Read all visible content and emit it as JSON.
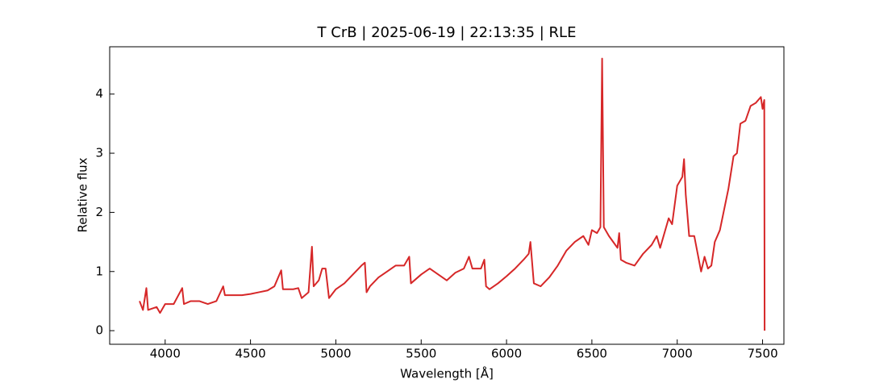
{
  "chart_data": {
    "type": "line",
    "title": "T CrB | 2025-06-19 | 22:13:35 | RLE",
    "xlabel": "Wavelength [Å]",
    "ylabel": "Relative flux",
    "xlim": [
      3675,
      7625
    ],
    "ylim": [
      -0.23,
      4.8
    ],
    "xticks": [
      4000,
      4500,
      5000,
      5500,
      6000,
      6500,
      7000,
      7500
    ],
    "yticks": [
      0,
      1,
      2,
      3,
      4
    ],
    "series": [
      {
        "color": "#d62728",
        "x": [
          3850,
          3870,
          3890,
          3900,
          3950,
          3970,
          4000,
          4050,
          4100,
          4110,
          4150,
          4200,
          4250,
          4300,
          4340,
          4350,
          4400,
          4450,
          4500,
          4550,
          4600,
          4640,
          4680,
          4690,
          4750,
          4780,
          4800,
          4840,
          4860,
          4870,
          4900,
          4920,
          4940,
          4960,
          5000,
          5050,
          5100,
          5150,
          5170,
          5180,
          5200,
          5250,
          5300,
          5350,
          5400,
          5430,
          5440,
          5500,
          5550,
          5600,
          5650,
          5700,
          5750,
          5780,
          5800,
          5850,
          5870,
          5880,
          5900,
          5950,
          6000,
          6050,
          6100,
          6130,
          6140,
          6160,
          6200,
          6250,
          6300,
          6350,
          6400,
          6450,
          6480,
          6500,
          6530,
          6550,
          6560,
          6570,
          6600,
          6650,
          6660,
          6670,
          6700,
          6750,
          6800,
          6850,
          6880,
          6900,
          6950,
          6970,
          7000,
          7030,
          7040,
          7050,
          7070,
          7100,
          7120,
          7140,
          7160,
          7180,
          7200,
          7220,
          7250,
          7300,
          7330,
          7350,
          7370,
          7400,
          7430,
          7460,
          7490,
          7500,
          7510,
          7512
        ],
        "values": [
          0.5,
          0.35,
          0.72,
          0.35,
          0.4,
          0.3,
          0.45,
          0.45,
          0.72,
          0.45,
          0.5,
          0.5,
          0.45,
          0.5,
          0.75,
          0.6,
          0.6,
          0.6,
          0.62,
          0.65,
          0.68,
          0.75,
          1.02,
          0.7,
          0.7,
          0.72,
          0.55,
          0.65,
          1.42,
          0.75,
          0.85,
          1.05,
          1.05,
          0.55,
          0.7,
          0.8,
          0.95,
          1.1,
          1.15,
          0.65,
          0.75,
          0.9,
          1.0,
          1.1,
          1.1,
          1.25,
          0.8,
          0.95,
          1.05,
          0.95,
          0.85,
          0.98,
          1.05,
          1.25,
          1.05,
          1.05,
          1.2,
          0.75,
          0.7,
          0.8,
          0.92,
          1.05,
          1.2,
          1.3,
          1.5,
          0.8,
          0.75,
          0.9,
          1.1,
          1.35,
          1.5,
          1.6,
          1.45,
          1.7,
          1.65,
          1.75,
          4.6,
          1.75,
          1.6,
          1.4,
          1.65,
          1.2,
          1.15,
          1.1,
          1.3,
          1.45,
          1.6,
          1.4,
          1.9,
          1.8,
          2.45,
          2.6,
          2.9,
          2.3,
          1.6,
          1.6,
          1.3,
          1.0,
          1.25,
          1.05,
          1.1,
          1.5,
          1.7,
          2.4,
          2.95,
          3.0,
          3.5,
          3.55,
          3.8,
          3.85,
          3.95,
          3.75,
          3.9,
          0
        ]
      }
    ]
  }
}
